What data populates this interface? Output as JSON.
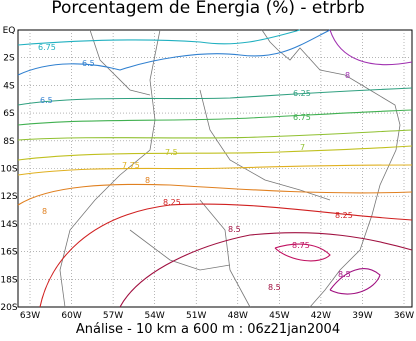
{
  "header": {
    "title": "Porcentagem de Energia (%) - etrbrb"
  },
  "axes": {
    "latitude": [
      "EQ",
      "2S",
      "4S",
      "6S",
      "8S",
      "10S",
      "12S",
      "14S",
      "16S",
      "18S",
      "20S"
    ],
    "longitude": [
      "63W",
      "60W",
      "57W",
      "54W",
      "51W",
      "48W",
      "45W",
      "42W",
      "39W",
      "36W"
    ]
  },
  "contours": [
    "6.75",
    "6.5",
    "6.5",
    "8",
    "6.25",
    "6.75",
    "7",
    "7.5",
    "7.75",
    "8",
    "8",
    "8.25",
    "8.25",
    "8.5",
    "8.75",
    "8.5",
    "8.5"
  ],
  "footer": {
    "caption": "Análise - 10 km a 600 m : 06z21jan2004"
  }
}
